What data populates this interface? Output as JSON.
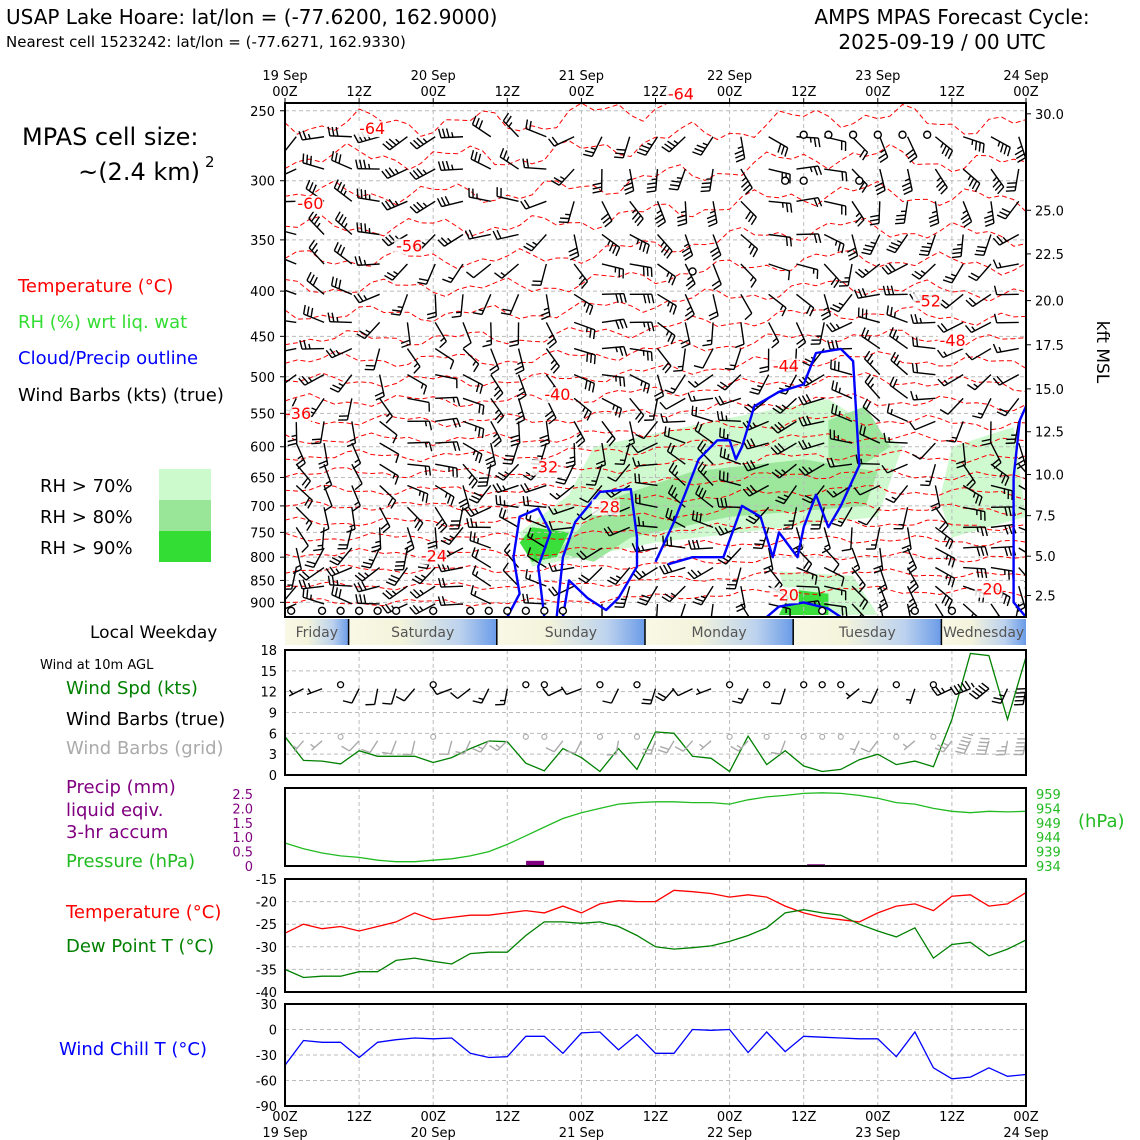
{
  "header": {
    "station": "USAP Lake Hoare: lat/lon = (-77.6200, 162.9000)",
    "nearest": "Nearest cell 1523242: lat/lon = (-77.6271, 162.9330)",
    "cycle_label": "AMPS MPAS Forecast Cycle:",
    "cycle_value": "2025-09-19 / 00 UTC"
  },
  "cell_size": {
    "label": "MPAS cell size:",
    "value": "~(2.4 km)",
    "superscript": "2"
  },
  "time_axis": {
    "ticks_top": [
      "19 Sep\n00Z",
      "12Z",
      "20 Sep\n00Z",
      "12Z",
      "21 Sep\n00Z",
      "12Z",
      "22 Sep\n00Z",
      "12Z",
      "23 Sep\n00Z",
      "12Z",
      "24 Sep\n00Z"
    ],
    "ticks_bottom": [
      "00Z\n19 Sep",
      "12Z",
      "00Z\n20 Sep",
      "12Z",
      "00Z\n21 Sep",
      "12Z",
      "00Z\n22 Sep",
      "12Z",
      "00Z\n23 Sep",
      "12Z",
      "00Z\n24 Sep"
    ]
  },
  "legend_left": {
    "temperature": "Temperature (°C)",
    "rh": "RH (%) wrt liq. wat",
    "cloud": "Cloud/Precip outline",
    "barbs": "Wind Barbs (kts) (true)",
    "rh70": "RH > 70%",
    "rh80": "RH > 80%",
    "rh90": "RH > 90%"
  },
  "colors": {
    "temperature": "#ff0000",
    "rh_label": "#33dd33",
    "cloud": "#0000ff",
    "rh70": "#ccfacc",
    "rh80": "#99e699",
    "rh90": "#33dd33",
    "wind_green": "#008000",
    "pressure": "#22bb22",
    "precip": "#800080",
    "dewpoint": "#008000",
    "windchill": "#0000ff",
    "grid_barb": "#aaaaaa"
  },
  "weekday": {
    "label": "Local Weekday",
    "days": [
      "Friday",
      "Saturday",
      "Sunday",
      "Monday",
      "Tuesday",
      "Wednesday"
    ]
  },
  "panel_labels": {
    "wind_title": "Wind at 10m AGL",
    "wind_spd": "Wind Spd (kts)",
    "wind_barbs": "Wind Barbs (true)",
    "wind_barbs_grid": "Wind Barbs (grid)",
    "precip1": "Precip (mm)",
    "precip2": "liquid eqiv.",
    "precip3": "3-hr accum",
    "pressure": "Pressure (hPa)",
    "hpa_unit": "(hPa)",
    "temp": "Temperature (°C)",
    "dew": "Dew Point T (°C)",
    "windchill": "Wind Chill T (°C)",
    "kft": "kft MSL"
  },
  "chart_data": [
    {
      "type": "heatmap",
      "name": "vertical time-section",
      "x_range_hours": [
        0,
        120
      ],
      "pressure_ticks": [
        250,
        300,
        350,
        400,
        450,
        500,
        550,
        600,
        650,
        700,
        750,
        800,
        850,
        900
      ],
      "height_ticks_kft": [
        "30.0",
        "25.0",
        "22.5",
        "20.0",
        "17.5",
        "15.0",
        "12.5",
        "10.0",
        "7.5",
        "5.0",
        "2.5"
      ],
      "height_tick_pressure": [
        252,
        324,
        363,
        410,
        460,
        516,
        577,
        645,
        718,
        798,
        884
      ],
      "temperature_contours": [
        {
          "label": "-64",
          "label_pos": [
            12,
            265
          ]
        },
        {
          "label": "-60",
          "label_pos": [
            2,
            322
          ]
        },
        {
          "label": "-56",
          "label_pos": [
            18,
            360
          ]
        },
        {
          "label": "-52",
          "label_pos": [
            102,
            415
          ]
        },
        {
          "label": "-48",
          "label_pos": [
            106,
            460
          ]
        },
        {
          "label": "-44",
          "label_pos": [
            79,
            492
          ]
        },
        {
          "label": "-40",
          "label_pos": [
            42,
            530
          ]
        },
        {
          "label": "-36",
          "label_pos": [
            0,
            557
          ]
        },
        {
          "label": "-32",
          "label_pos": [
            40,
            640
          ]
        },
        {
          "label": "-28",
          "label_pos": [
            50,
            710
          ]
        },
        {
          "label": "-24",
          "label_pos": [
            22,
            807
          ]
        },
        {
          "label": "-20",
          "label_pos": [
            79,
            893
          ]
        },
        {
          "label": "-20",
          "label_pos": [
            112,
            880
          ]
        },
        {
          "label": "-64",
          "label_pos": [
            62,
            242
          ]
        }
      ],
      "rh_regions": [
        {
          "level": "70",
          "points": [
            [
              50,
              600
            ],
            [
              70,
              560
            ],
            [
              88,
              530
            ],
            [
              100,
              600
            ],
            [
              96,
              720
            ],
            [
              60,
              770
            ],
            [
              48,
              800
            ],
            [
              40,
              820
            ],
            [
              38,
              750
            ],
            [
              46,
              680
            ]
          ]
        },
        {
          "level": "70",
          "points": [
            [
              108,
              600
            ],
            [
              118,
              570
            ],
            [
              120,
              720
            ],
            [
              108,
              760
            ],
            [
              106,
              690
            ]
          ]
        },
        {
          "level": "70",
          "points": [
            [
              80,
              830
            ],
            [
              92,
              840
            ],
            [
              96,
              930
            ],
            [
              82,
              930
            ]
          ]
        },
        {
          "level": "80",
          "points": [
            [
              52,
              690
            ],
            [
              66,
              640
            ],
            [
              84,
              620
            ],
            [
              96,
              640
            ],
            [
              94,
              700
            ],
            [
              72,
              720
            ],
            [
              56,
              760
            ],
            [
              50,
              810
            ],
            [
              44,
              790
            ]
          ]
        },
        {
          "level": "80",
          "points": [
            [
              88,
              560
            ],
            [
              94,
              540
            ],
            [
              98,
              600
            ],
            [
              92,
              640
            ],
            [
              88,
              620
            ]
          ]
        },
        {
          "level": "90",
          "points": [
            [
              40,
              740
            ],
            [
              46,
              750
            ],
            [
              44,
              800
            ],
            [
              40,
              810
            ],
            [
              38,
              770
            ]
          ]
        },
        {
          "level": "90",
          "points": [
            [
              82,
              870
            ],
            [
              88,
              880
            ],
            [
              88,
              930
            ],
            [
              80,
              930
            ]
          ]
        }
      ],
      "cloud_outlines": [
        [
          [
            36,
            935
          ],
          [
            38,
            880
          ],
          [
            37,
            800
          ],
          [
            38,
            720
          ],
          [
            41,
            705
          ],
          [
            43,
            750
          ],
          [
            41,
            820
          ],
          [
            42,
            935
          ]
        ],
        [
          [
            44,
            935
          ],
          [
            45,
            800
          ],
          [
            47,
            730
          ],
          [
            51,
            675
          ],
          [
            56,
            670
          ],
          [
            57,
            760
          ],
          [
            57,
            820
          ],
          [
            54,
            890
          ],
          [
            52,
            918
          ],
          [
            49,
            890
          ],
          [
            46,
            850
          ],
          [
            45,
            935
          ]
        ],
        [
          [
            60,
            810
          ],
          [
            63,
            730
          ],
          [
            67,
            620
          ],
          [
            70,
            590
          ],
          [
            72,
            590
          ],
          [
            73,
            620
          ],
          [
            74,
            600
          ],
          [
            76,
            540
          ],
          [
            80,
            520
          ],
          [
            84,
            510
          ],
          [
            86,
            470
          ],
          [
            90,
            465
          ],
          [
            92,
            480
          ],
          [
            93,
            630
          ],
          [
            90,
            700
          ],
          [
            88,
            740
          ],
          [
            86,
            680
          ],
          [
            84,
            740
          ],
          [
            83,
            800
          ],
          [
            80,
            750
          ],
          [
            79,
            800
          ],
          [
            77,
            720
          ],
          [
            74,
            700
          ],
          [
            71,
            800
          ],
          [
            66,
            800
          ],
          [
            62,
            815
          ]
        ],
        [
          [
            78,
            935
          ],
          [
            80,
            910
          ],
          [
            84,
            900
          ],
          [
            88,
            915
          ],
          [
            90,
            935
          ]
        ],
        [
          [
            120,
            935
          ],
          [
            118,
            900
          ],
          [
            118,
            650
          ],
          [
            119,
            560
          ],
          [
            120,
            540
          ]
        ]
      ],
      "pressure_level_dots": [
        {
          "level": 250,
          "hours": [
            84,
            88,
            92,
            96,
            100,
            104
          ]
        },
        {
          "level": 300,
          "hours": [
            81,
            84,
            93
          ]
        },
        {
          "level": 380,
          "hours": [
            66
          ]
        },
        {
          "level": 920,
          "hours": [
            1,
            6,
            9,
            12,
            15,
            18,
            24,
            30,
            33,
            36,
            39,
            42,
            45,
            87,
            102,
            108
          ]
        }
      ]
    },
    {
      "type": "line",
      "name": "10m wind speed",
      "ylabel": "Wind Spd (kts)",
      "ylim": [
        0,
        18
      ],
      "yticks": [
        0,
        3,
        6,
        9,
        12,
        15,
        18
      ],
      "x": [
        0,
        3,
        6,
        9,
        12,
        15,
        18,
        21,
        24,
        27,
        30,
        33,
        36,
        39,
        42,
        45,
        48,
        51,
        54,
        57,
        60,
        63,
        66,
        69,
        72,
        75,
        78,
        81,
        84,
        87,
        90,
        93,
        96,
        99,
        102,
        105,
        108,
        111,
        114,
        117,
        120
      ],
      "values": [
        5.5,
        2.1,
        2.0,
        1.6,
        3.5,
        2.7,
        2.7,
        2.7,
        1.8,
        2.5,
        3.8,
        4.9,
        4.8,
        1.7,
        0.6,
        3.8,
        2.5,
        0.5,
        3.8,
        0.8,
        6.2,
        6.0,
        2.7,
        2.4,
        0.5,
        5.6,
        1.5,
        3.5,
        1.3,
        0.5,
        0.8,
        2.2,
        3.0,
        1.5,
        2.0,
        1.2,
        8.0,
        17.5,
        17.2,
        8.0,
        17.0
      ]
    },
    {
      "type": "line",
      "name": "surface pressure and precip",
      "ylabel": "Pressure (hPa)",
      "precip_ticks": [
        "0",
        "0.5",
        "1.0",
        "1.5",
        "2.0",
        "2.5"
      ],
      "pressure_ticks": [
        "934",
        "939",
        "944",
        "949",
        "954",
        "959"
      ],
      "pressure_ylim": [
        934,
        959
      ],
      "precip_ylim": [
        0,
        2.5
      ],
      "x": [
        0,
        3,
        6,
        9,
        12,
        15,
        18,
        21,
        24,
        27,
        30,
        33,
        36,
        39,
        42,
        45,
        48,
        51,
        54,
        57,
        60,
        63,
        66,
        69,
        72,
        75,
        78,
        81,
        84,
        87,
        90,
        93,
        96,
        99,
        102,
        105,
        108,
        111,
        114,
        117,
        120
      ],
      "pressure": [
        942.0,
        940.0,
        938.5,
        937.5,
        937.0,
        936.0,
        935.5,
        935.5,
        936.0,
        936.5,
        937.5,
        939.0,
        941.5,
        944.5,
        947.5,
        950.5,
        952.5,
        954.0,
        955.5,
        956.0,
        956.3,
        956.3,
        956.0,
        956.0,
        955.5,
        957.0,
        958.0,
        958.5,
        959.2,
        959.4,
        959.2,
        958.5,
        957.5,
        956.0,
        955.5,
        954.0,
        953.0,
        952.5,
        953.0,
        952.8,
        953.0
      ],
      "precip": [
        {
          "x": 40.5,
          "value": 0.18
        },
        {
          "x": 86,
          "value": 0.06
        }
      ]
    },
    {
      "type": "line",
      "name": "temperature and dew point",
      "ylim": [
        -40,
        -15
      ],
      "yticks": [
        -40,
        -35,
        -30,
        -25,
        -20,
        -15
      ],
      "x": [
        0,
        3,
        6,
        9,
        12,
        15,
        18,
        21,
        24,
        27,
        30,
        33,
        36,
        39,
        42,
        45,
        48,
        51,
        54,
        57,
        60,
        63,
        66,
        69,
        72,
        75,
        78,
        81,
        84,
        87,
        90,
        93,
        96,
        99,
        102,
        105,
        108,
        111,
        114,
        117,
        120
      ],
      "series": [
        {
          "name": "Temperature (°C)",
          "values": [
            -27.0,
            -25.0,
            -26.0,
            -25.5,
            -26.5,
            -25.5,
            -24.5,
            -22.5,
            -24.0,
            -23.5,
            -23.0,
            -23.0,
            -22.5,
            -22.0,
            -22.5,
            -21.0,
            -22.5,
            -20.5,
            -19.8,
            -20.0,
            -20.0,
            -17.5,
            -17.8,
            -18.2,
            -19.0,
            -18.5,
            -19.0,
            -21.0,
            -22.5,
            -23.5,
            -24.0,
            -24.5,
            -22.5,
            -21.0,
            -20.5,
            -22.0,
            -18.8,
            -18.5,
            -21.0,
            -20.5,
            -18.0
          ]
        },
        {
          "name": "Dew Point T (°C)",
          "values": [
            -35.0,
            -36.8,
            -36.5,
            -36.5,
            -35.5,
            -35.5,
            -33.0,
            -32.5,
            -33.2,
            -33.8,
            -31.5,
            -31.2,
            -31.2,
            -27.5,
            -24.5,
            -24.5,
            -24.8,
            -24.5,
            -25.5,
            -27.5,
            -30.0,
            -30.5,
            -30.2,
            -29.8,
            -28.8,
            -27.5,
            -25.8,
            -22.5,
            -21.8,
            -22.5,
            -23.0,
            -25.0,
            -26.5,
            -27.8,
            -25.8,
            -32.5,
            -29.5,
            -29.0,
            -32.0,
            -30.5,
            -28.5
          ]
        }
      ]
    },
    {
      "type": "line",
      "name": "wind chill",
      "ylabel": "Wind Chill T (°C)",
      "ylim": [
        -90,
        30
      ],
      "yticks": [
        -90,
        -60,
        -30,
        0,
        30
      ],
      "x": [
        0,
        3,
        6,
        9,
        12,
        15,
        18,
        21,
        24,
        27,
        30,
        33,
        36,
        39,
        42,
        45,
        48,
        51,
        54,
        57,
        60,
        63,
        66,
        69,
        72,
        75,
        78,
        81,
        84,
        87,
        90,
        93,
        96,
        99,
        102,
        105,
        108,
        111,
        114,
        117,
        120
      ],
      "values": [
        -42,
        -13,
        -15,
        -15,
        -33,
        -15,
        -12,
        -10,
        -11,
        -10,
        -28,
        -33,
        -32,
        -8,
        -8,
        -28,
        -4,
        -3,
        -24,
        -6,
        -28,
        -28,
        0,
        -1,
        0,
        -27,
        -3,
        -26,
        -8,
        -9,
        -10,
        -11,
        -11,
        -32,
        -3,
        -45,
        -58,
        -56,
        -45,
        -55,
        -53
      ]
    }
  ]
}
